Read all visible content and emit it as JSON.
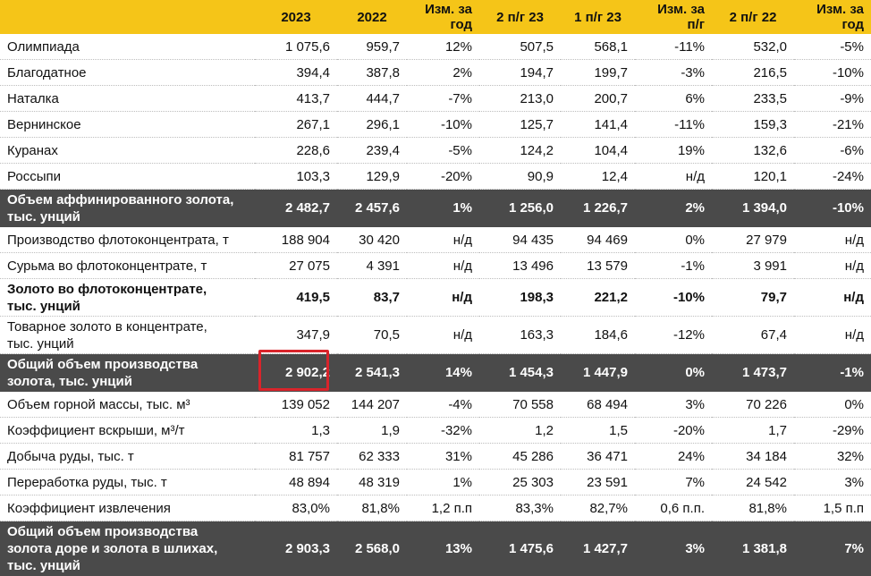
{
  "header": {
    "columns": [
      "",
      "2023",
      "2022",
      "Изм. за год",
      "2 п/г 23",
      "1 п/г 23",
      "Изм. за п/г",
      "2 п/г 22",
      "Изм. за год"
    ]
  },
  "rows": [
    {
      "label": [
        "Олимпиада"
      ],
      "values": [
        "1 075,6",
        "959,7",
        "12%",
        "507,5",
        "568,1",
        "-11%",
        "532,0",
        "-5%"
      ]
    },
    {
      "label": [
        "Благодатное"
      ],
      "values": [
        "394,4",
        "387,8",
        "2%",
        "194,7",
        "199,7",
        "-3%",
        "216,5",
        "-10%"
      ]
    },
    {
      "label": [
        "Наталка"
      ],
      "values": [
        "413,7",
        "444,7",
        "-7%",
        "213,0",
        "200,7",
        "6%",
        "233,5",
        "-9%"
      ]
    },
    {
      "label": [
        "Вернинское"
      ],
      "values": [
        "267,1",
        "296,1",
        "-10%",
        "125,7",
        "141,4",
        "-11%",
        "159,3",
        "-21%"
      ]
    },
    {
      "label": [
        "Куранах"
      ],
      "values": [
        "228,6",
        "239,4",
        "-5%",
        "124,2",
        "104,4",
        "19%",
        "132,6",
        "-6%"
      ]
    },
    {
      "label": [
        "Россыпи"
      ],
      "values": [
        "103,3",
        "129,9",
        "-20%",
        "90,9",
        "12,4",
        "н/д",
        "120,1",
        "-24%"
      ]
    },
    {
      "label": [
        "Объем аффинированного золота,",
        "тыс. унций"
      ],
      "values": [
        "2 482,7",
        "2 457,6",
        "1%",
        "1 256,0",
        "1 226,7",
        "2%",
        "1 394,0",
        "-10%"
      ]
    },
    {
      "label": [
        "Производство флотоконцентрата, т"
      ],
      "values": [
        "188 904",
        "30 420",
        "н/д",
        "94 435",
        "94 469",
        "0%",
        "27 979",
        "н/д"
      ]
    },
    {
      "label": [
        "Сурьма во флотоконцентрате, т"
      ],
      "values": [
        "27 075",
        "4 391",
        "н/д",
        "13 496",
        "13 579",
        "-1%",
        "3 991",
        "н/д"
      ]
    },
    {
      "label": [
        "Золото во флотоконцентрате,",
        "тыс. унций"
      ],
      "values": [
        "419,5",
        "83,7",
        "н/д",
        "198,3",
        "221,2",
        "-10%",
        "79,7",
        "н/д"
      ]
    },
    {
      "label": [
        "Товарное золото в концентрате,",
        "тыс. унций"
      ],
      "values": [
        "347,9",
        "70,5",
        "н/д",
        "163,3",
        "184,6",
        "-12%",
        "67,4",
        "н/д"
      ]
    },
    {
      "label": [
        "Общий объем производства",
        "золота, тыс. унций"
      ],
      "values": [
        "2 902,2",
        "2 541,3",
        "14%",
        "1 454,3",
        "1 447,9",
        "0%",
        "1 473,7",
        "-1%"
      ]
    },
    {
      "label": [
        "Объем горной массы, тыс. м³"
      ],
      "values": [
        "139 052",
        "144 207",
        "-4%",
        "70 558",
        "68 494",
        "3%",
        "70 226",
        "0%"
      ]
    },
    {
      "label": [
        "Коэффициент вскрыши, м³/т"
      ],
      "values": [
        "1,3",
        "1,9",
        "-32%",
        "1,2",
        "1,5",
        "-20%",
        "1,7",
        "-29%"
      ]
    },
    {
      "label": [
        "Добыча руды, тыс. т"
      ],
      "values": [
        "81 757",
        "62 333",
        "31%",
        "45 286",
        "36 471",
        "24%",
        "34 184",
        "32%"
      ]
    },
    {
      "label": [
        "Переработка руды, тыс. т"
      ],
      "values": [
        "48 894",
        "48 319",
        "1%",
        "25 303",
        "23 591",
        "7%",
        "24 542",
        "3%"
      ]
    },
    {
      "label": [
        "Коэффициент извлечения"
      ],
      "values": [
        "83,0%",
        "81,8%",
        "1,2 п.п",
        "83,3%",
        "82,7%",
        "0,6 п.п.",
        "81,8%",
        "1,5 п.п"
      ]
    },
    {
      "label": [
        "Общий объем производства",
        "золота доре и золота в шлихах,",
        "тыс. унций"
      ],
      "values": [
        "2 903,3",
        "2 568,0",
        "13%",
        "1 475,6",
        "1 427,7",
        "3%",
        "1 381,8",
        "7%"
      ]
    }
  ],
  "colors": {
    "header_bg": "#f5c518",
    "dark_row_bg": "#4a4a4a",
    "highlight": "#d9242b"
  }
}
